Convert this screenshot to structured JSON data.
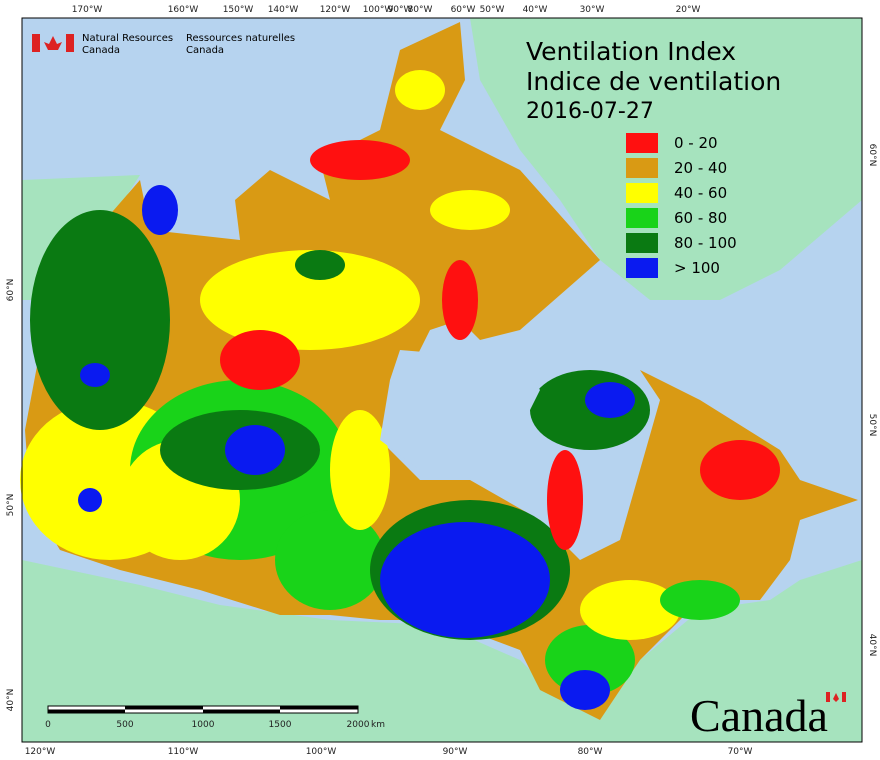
{
  "header": {
    "agency_en": [
      "Natural Resources",
      "Canada"
    ],
    "agency_fr": [
      "Ressources naturelles",
      "Canada"
    ]
  },
  "title": {
    "line1": "Ventilation Index",
    "line2": "Indice de ventilation",
    "date": "2016-07-27"
  },
  "legend": [
    {
      "label": "0 - 20",
      "color": "#ff1010"
    },
    {
      "label": "20 - 40",
      "color": "#d99a14"
    },
    {
      "label": "40 - 60",
      "color": "#ffff00"
    },
    {
      "label": "60 - 80",
      "color": "#19d319"
    },
    {
      "label": "80 - 100",
      "color": "#0a7a12"
    },
    {
      "label": "> 100",
      "color": "#0a1af0"
    }
  ],
  "graticule": {
    "top": [
      "170°W",
      "160°W",
      "150°W",
      "140°W",
      "120°W",
      "100°W",
      "90°W",
      "80°W",
      "60°W",
      "50°W",
      "40°W",
      "30°W",
      "20°W"
    ],
    "bottom": [
      "120°W",
      "110°W",
      "100°W",
      "90°W",
      "80°W",
      "70°W"
    ],
    "left": [
      "60°N",
      "50°N",
      "40°N"
    ],
    "right": [
      "60°N",
      "50°N",
      "40°N"
    ]
  },
  "scale_bar": {
    "labels": [
      "0",
      "500",
      "1000",
      "1500",
      "2000"
    ],
    "unit": "km"
  },
  "wordmark": "Canada"
}
